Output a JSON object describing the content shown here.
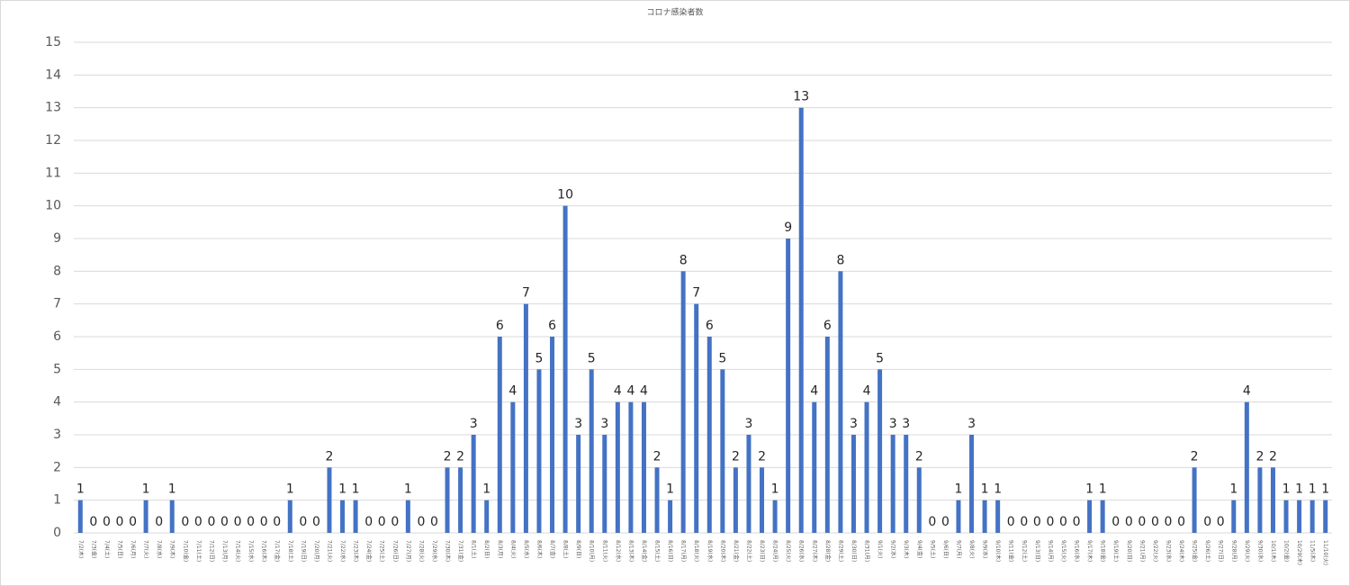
{
  "chart_data": {
    "type": "bar",
    "title": "コロナ感染者数",
    "color": "#4472c4",
    "grid": true,
    "ylim": [
      0,
      15
    ],
    "yticks": [
      0,
      1,
      2,
      3,
      4,
      5,
      6,
      7,
      8,
      9,
      10,
      11,
      12,
      13,
      14,
      15
    ],
    "categories": [
      "7/2(木)",
      "7/3(金)",
      "7/4(土)",
      "7/5(日)",
      "7/6(月)",
      "7/7(火)",
      "7/8(水)",
      "7/9(木)",
      "7/10(金)",
      "7/11(土)",
      "7/12(日)",
      "7/13(月)",
      "7/14(火)",
      "7/15(水)",
      "7/16(木)",
      "7/17(金)",
      "7/18(土)",
      "7/19(日)",
      "7/20(月)",
      "7/21(火)",
      "7/22(水)",
      "7/23(木)",
      "7/24(金)",
      "7/25(土)",
      "7/26(日)",
      "7/27(月)",
      "7/28(火)",
      "7/29(水)",
      "7/30(木)",
      "7/31(金)",
      "8/1(土)",
      "8/2(日)",
      "8/3(月)",
      "8/4(火)",
      "8/5(水)",
      "8/6(木)",
      "8/7(金)",
      "8/8(土)",
      "8/9(日)",
      "8/10(月)",
      "8/11(火)",
      "8/12(水)",
      "8/13(木)",
      "8/14(金)",
      "8/15(土)",
      "8/16(日)",
      "8/17(月)",
      "8/18(火)",
      "8/19(水)",
      "8/20(木)",
      "8/21(金)",
      "8/22(土)",
      "8/23(日)",
      "8/24(月)",
      "8/25(火)",
      "8/26(水)",
      "8/27(木)",
      "8/28(金)",
      "8/29(土)",
      "8/30(日)",
      "8/31(月)",
      "9/1(火)",
      "9/2(水)",
      "9/3(木)",
      "9/4(金)",
      "9/5(土)",
      "9/6(日)",
      "9/7(月)",
      "9/8(火)",
      "9/9(水)",
      "9/10(木)",
      "9/11(金)",
      "9/12(土)",
      "9/13(日)",
      "9/14(月)",
      "9/15(火)",
      "9/16(水)",
      "9/17(木)",
      "9/18(金)",
      "9/19(土)",
      "9/20(日)",
      "9/21(月)",
      "9/22(火)",
      "9/23(水)",
      "9/24(木)",
      "9/25(金)",
      "9/26(土)",
      "9/27(日)",
      "9/28(月)",
      "9/29(火)",
      "9/30(水)",
      "10/1(木)",
      "10/2(金)",
      "10/29(木)",
      "11/5(木)",
      "11/10(火)"
    ],
    "values": [
      1,
      0,
      0,
      0,
      0,
      1,
      0,
      1,
      0,
      0,
      0,
      0,
      0,
      0,
      0,
      0,
      1,
      0,
      0,
      2,
      1,
      1,
      0,
      0,
      0,
      1,
      0,
      0,
      2,
      2,
      3,
      1,
      6,
      4,
      7,
      5,
      6,
      10,
      3,
      5,
      3,
      4,
      4,
      4,
      2,
      1,
      8,
      7,
      6,
      5,
      2,
      3,
      2,
      1,
      9,
      13,
      4,
      6,
      8,
      3,
      4,
      5,
      3,
      3,
      2,
      0,
      0,
      1,
      3,
      1,
      1,
      0,
      0,
      0,
      0,
      0,
      0,
      1,
      1,
      0,
      0,
      0,
      0,
      0,
      0,
      2,
      0,
      0,
      1,
      4,
      2,
      2,
      1,
      1,
      1,
      1
    ]
  }
}
